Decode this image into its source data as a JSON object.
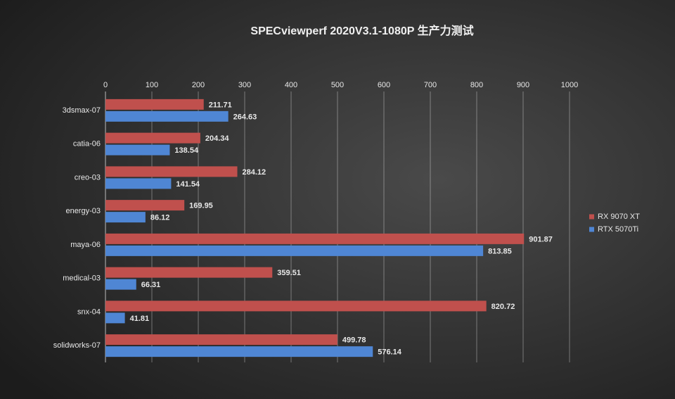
{
  "chart_data": {
    "type": "bar",
    "title": "SPECviewperf 2020V3.1-1080P 生产力测试",
    "categories": [
      "3dsmax-07",
      "catia-06",
      "creo-03",
      "energy-03",
      "maya-06",
      "medical-03",
      "snx-04",
      "solidworks-07"
    ],
    "series": [
      {
        "name": "RX 9070 XT",
        "color": "#c0504d",
        "values": [
          211.71,
          204.34,
          284.12,
          169.95,
          901.87,
          359.51,
          820.72,
          499.78
        ]
      },
      {
        "name": "RTX 5070Ti",
        "color": "#4f86d4",
        "values": [
          264.63,
          138.54,
          141.54,
          86.12,
          813.85,
          66.31,
          41.81,
          576.14
        ]
      }
    ],
    "xlim": [
      0,
      1000
    ],
    "xticks": [
      0,
      100,
      200,
      300,
      400,
      500,
      600,
      700,
      800,
      900,
      1000
    ],
    "grid": true
  }
}
